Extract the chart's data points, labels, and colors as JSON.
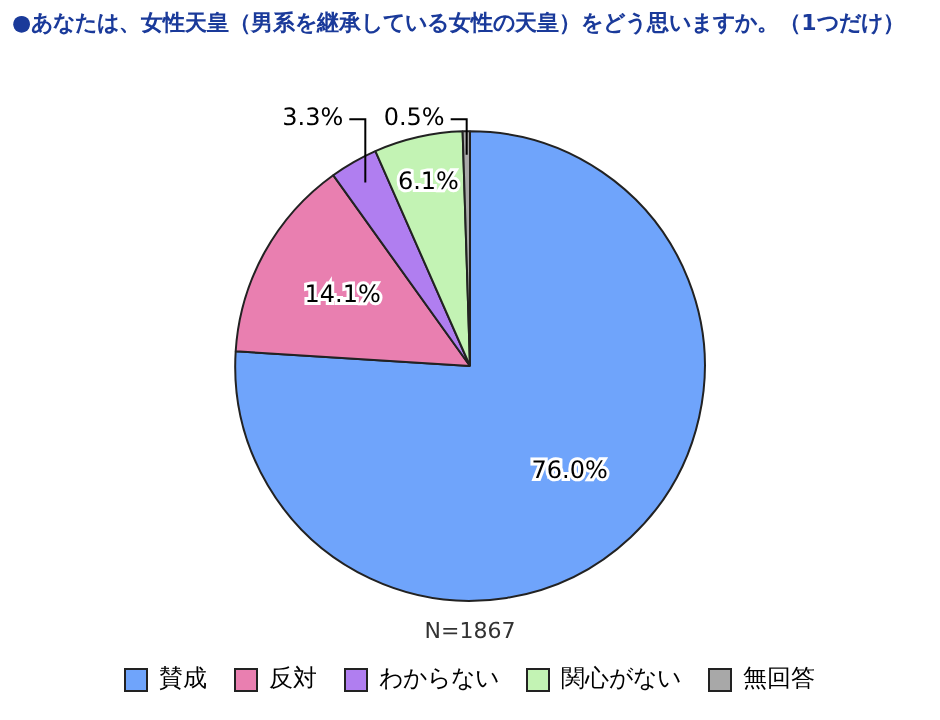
{
  "chart_data": {
    "type": "pie",
    "title": "●あなたは、女性天皇（男系を継承している女性の天皇）をどう思いますか。（1つだけ）",
    "categories": [
      "賛成",
      "反対",
      "わからない",
      "関心がない",
      "無回答"
    ],
    "values": [
      76.0,
      14.1,
      3.3,
      6.1,
      0.5
    ],
    "colors": [
      "#6fa4fb",
      "#e97fb0",
      "#b07ef0",
      "#c3f3b4",
      "#a8a8a8"
    ],
    "value_labels": [
      "76.0%",
      "14.1%",
      "3.3%",
      "6.1%",
      "0.5%"
    ],
    "annotations": [
      "N=1867"
    ],
    "legend": "bottom"
  }
}
